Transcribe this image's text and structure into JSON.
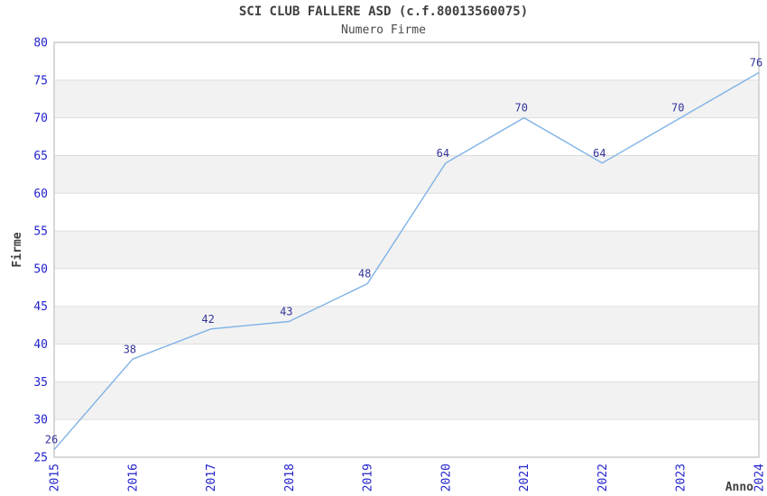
{
  "chart_data": {
    "type": "line",
    "title": "SCI CLUB FALLERE ASD (c.f.80013560075)",
    "subtitle": "Numero Firme",
    "xlabel": "Anno",
    "ylabel": "Firme",
    "categories": [
      "2015",
      "2016",
      "2017",
      "2018",
      "2019",
      "2020",
      "2021",
      "2022",
      "2023",
      "2024"
    ],
    "values": [
      26,
      38,
      42,
      43,
      48,
      64,
      70,
      64,
      70,
      76
    ],
    "ylim": [
      25,
      80
    ],
    "ytick_step": 5,
    "grid": "horizontal gridlines with alternating shaded bands",
    "legend": "none",
    "point_labels_shown": true,
    "colors": {
      "line": "#7FB2E5",
      "tick_label": "#2222CC",
      "point_label": "#333399",
      "band_fill": "#F2F2F2",
      "gridline": "#DDDDDD",
      "plot_border": "#CCCCCC",
      "title_text": "#404040",
      "background": "#FFFFFF"
    }
  }
}
